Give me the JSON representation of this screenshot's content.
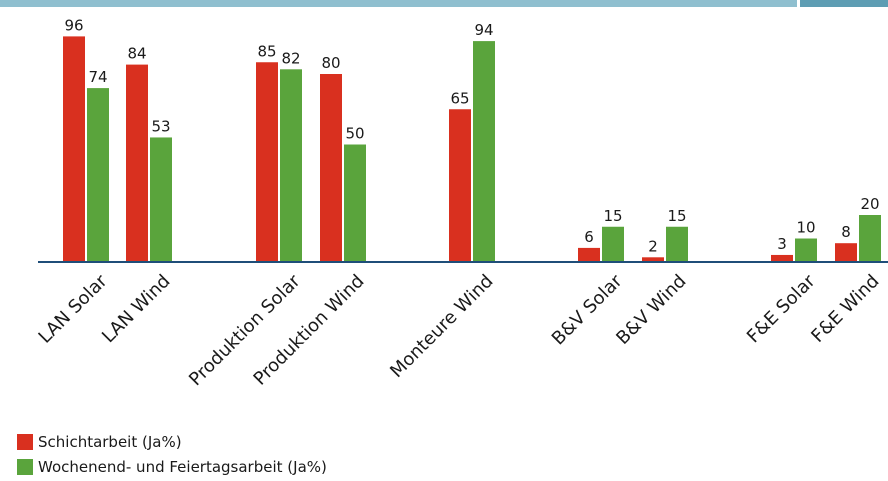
{
  "colors": {
    "accent_bar": "#8fbfcf",
    "accent_bar_end": "#5e9db3",
    "axis": "#1f4e79"
  },
  "chart_data": {
    "type": "bar",
    "categories": [
      "LAN Solar",
      "LAN Wind",
      "Produktion Solar",
      "Produktion Wind",
      "Monteure Wind",
      "B&V Solar",
      "B&V Wind",
      "F&E Solar",
      "F&E Wind"
    ],
    "series": [
      {
        "name": "Schichtarbeit (Ja%)",
        "color": "#d9301f",
        "values": [
          96,
          84,
          85,
          80,
          65,
          6,
          2,
          3,
          8
        ]
      },
      {
        "name": "Wochenend- und Feiertagsarbeit (Ja%)",
        "color": "#5aa43c",
        "values": [
          74,
          53,
          82,
          50,
          94,
          15,
          15,
          10,
          20
        ]
      }
    ],
    "ylim": [
      0,
      100
    ],
    "grid": false,
    "legend_position": "bottom-left"
  }
}
